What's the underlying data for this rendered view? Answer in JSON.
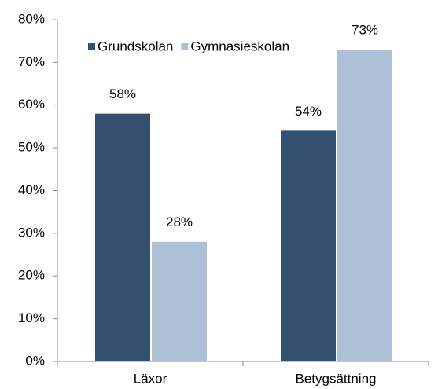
{
  "chart_data": {
    "type": "bar",
    "categories": [
      "Läxor",
      "Betygsättning"
    ],
    "series": [
      {
        "name": "Grundskolan",
        "color": "#34506f",
        "values": [
          58,
          54
        ],
        "value_labels": [
          "58%",
          "54%"
        ]
      },
      {
        "name": "Gymnasieskolan",
        "color": "#adc0d8",
        "values": [
          28,
          73
        ],
        "value_labels": [
          "28%",
          "73%"
        ]
      }
    ],
    "ylim": [
      0,
      80
    ],
    "yticks": [
      {
        "value": 0,
        "label": "0%"
      },
      {
        "value": 10,
        "label": "10%"
      },
      {
        "value": 20,
        "label": "20%"
      },
      {
        "value": 30,
        "label": "30%"
      },
      {
        "value": 40,
        "label": "40%"
      },
      {
        "value": 50,
        "label": "50%"
      },
      {
        "value": 60,
        "label": "60%"
      },
      {
        "value": 70,
        "label": "70%"
      },
      {
        "value": 80,
        "label": "80%"
      }
    ],
    "legend": "top-left"
  }
}
